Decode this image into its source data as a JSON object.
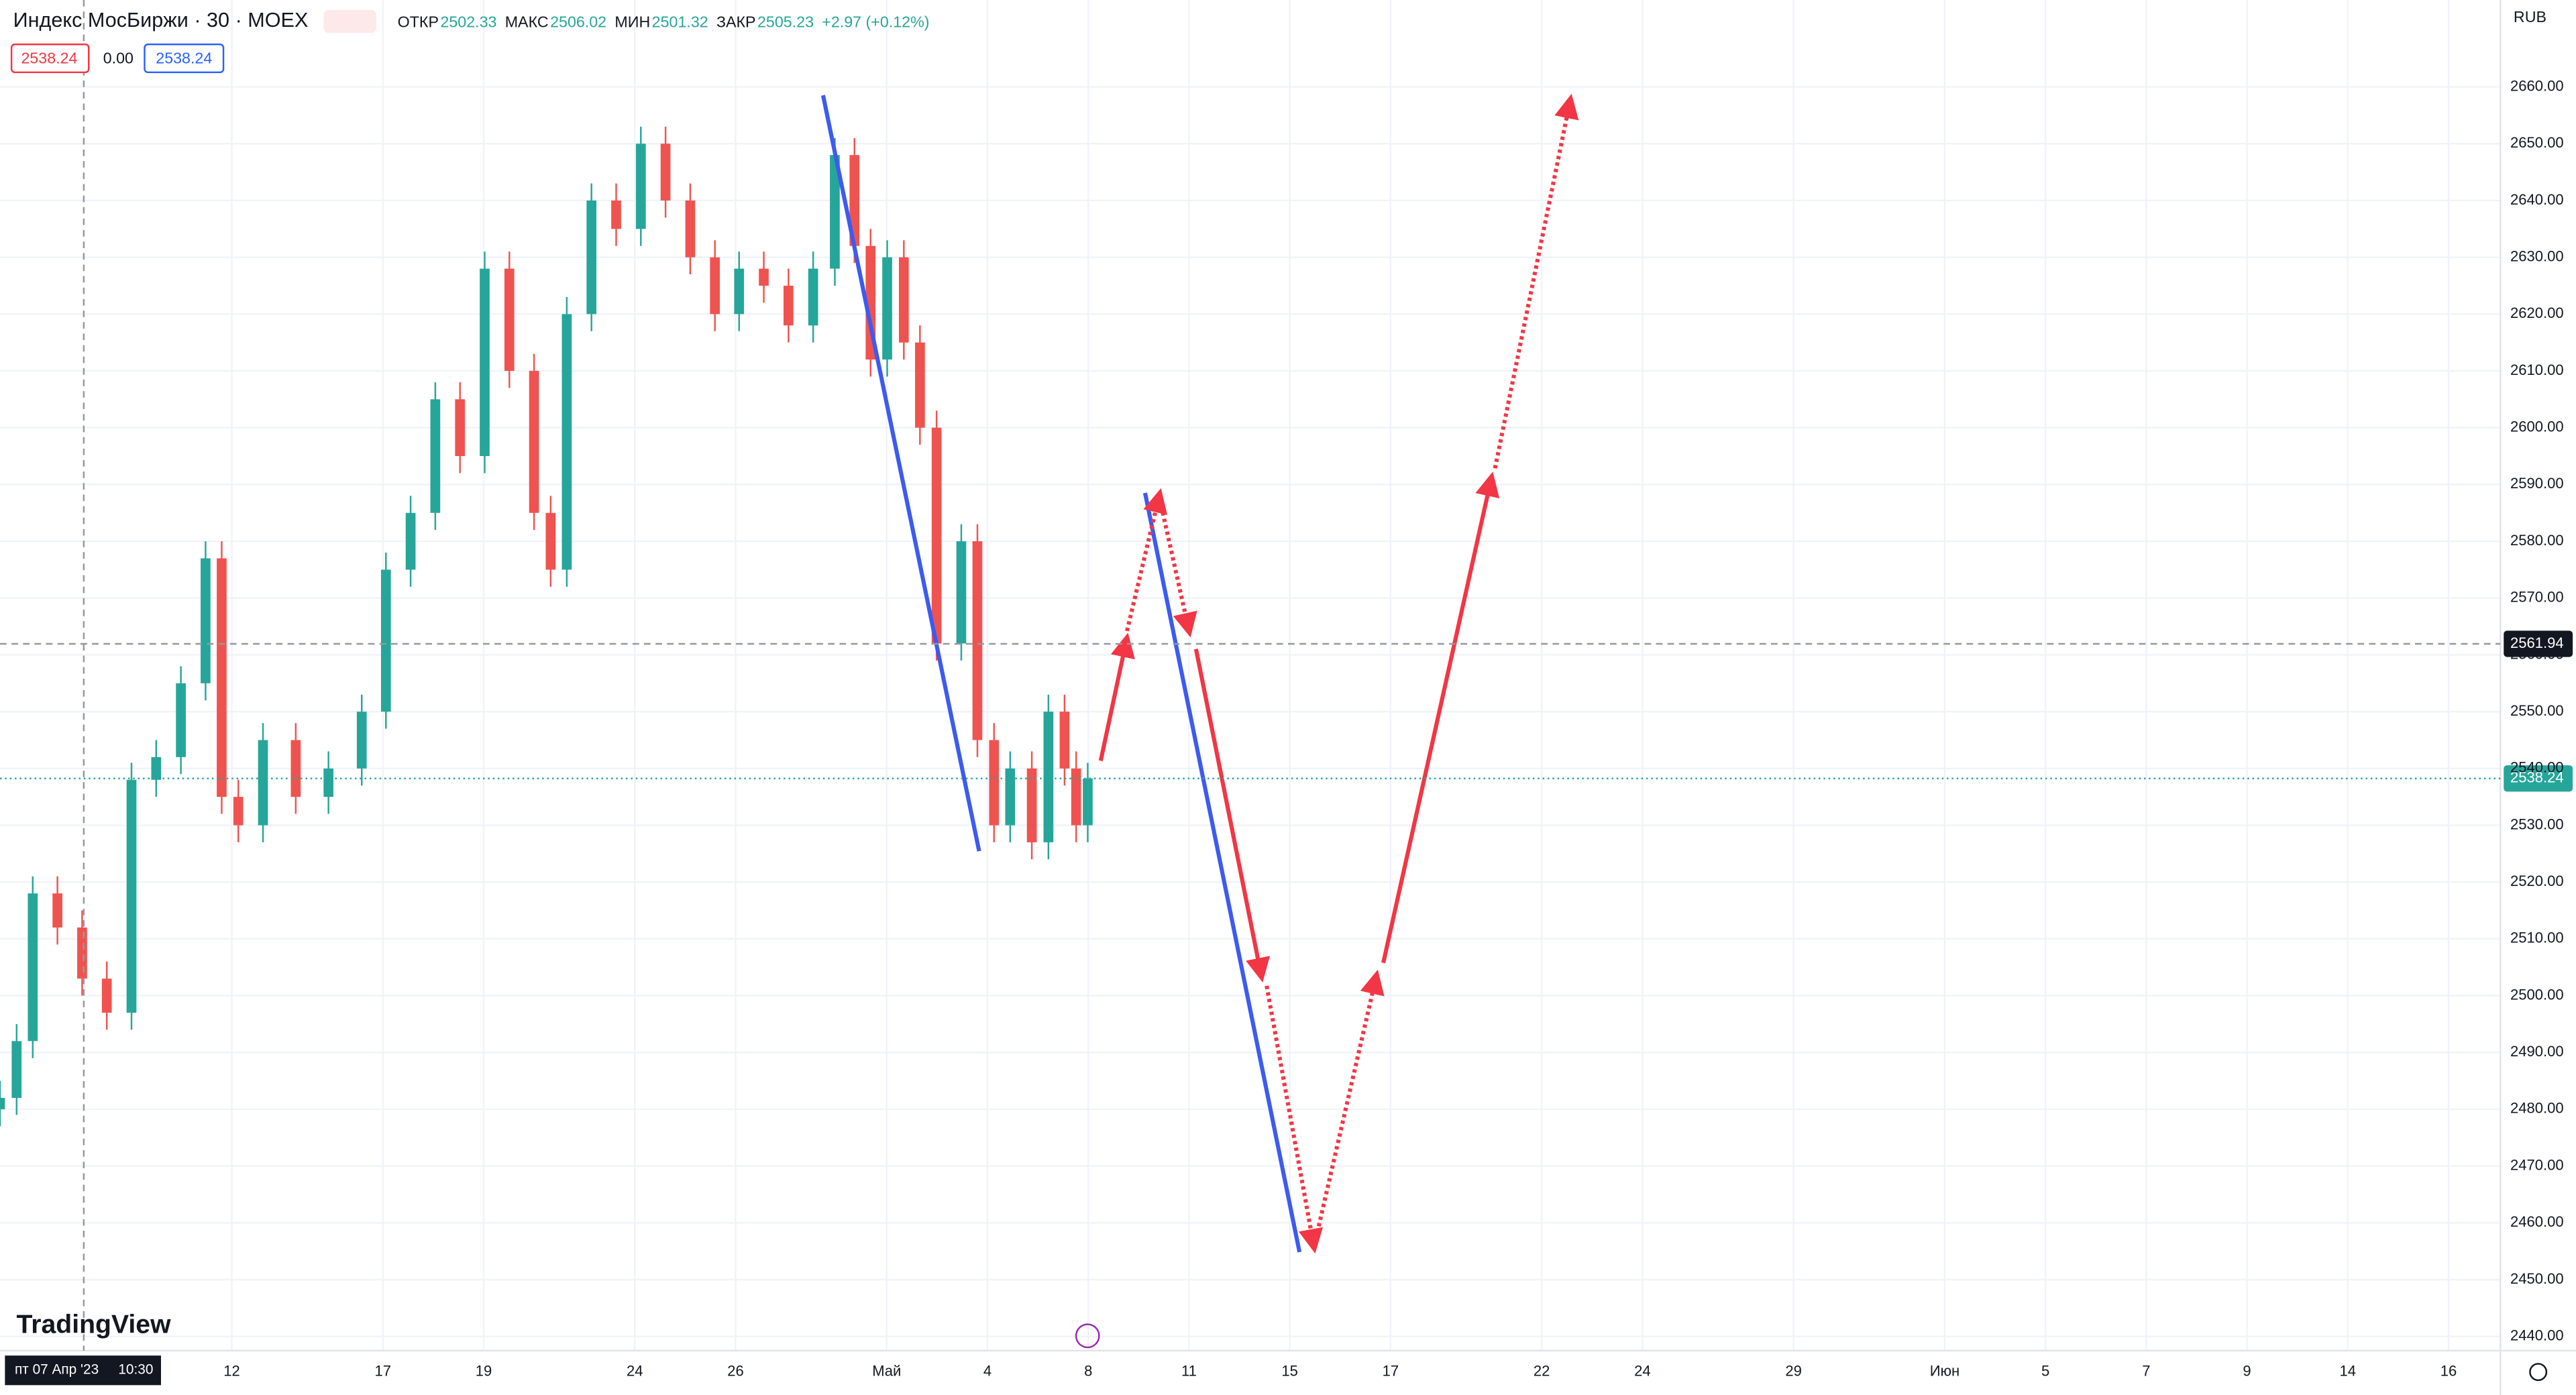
{
  "chart_data": {
    "type": "candlestick",
    "symbol": "Индекс МосБиржи · 30 · MOEX",
    "ohlc_legend": [
      {
        "label": "ОТКР",
        "value": "2502.33"
      },
      {
        "label": "МАКС",
        "value": "2506.02"
      },
      {
        "label": "МИН",
        "value": "2501.32"
      },
      {
        "label": "ЗАКР",
        "value": "2505.23"
      }
    ],
    "change": "+2.97 (+0.12%)",
    "badges": [
      "2538.24",
      "0.00",
      "2538.24"
    ],
    "currency": "RUB",
    "crosshair": {
      "price": "2561.94",
      "value": 2561.94,
      "date": "пт 07 Апр '23",
      "time": "10:30"
    },
    "last_price": {
      "label": "2538.24",
      "value": 2538.24
    },
    "brand": "TradingView",
    "up_color": "#26a69a",
    "down_color": "#ef5350",
    "x": [
      -4.6,
      -4.27,
      -3.95,
      -3.46,
      -2.97,
      -2.48,
      -1.99,
      -1.5,
      -1.01,
      -0.52,
      -0.2,
      0.13,
      0.62,
      1.27,
      1.92,
      2.58,
      3.06,
      3.55,
      4.04,
      4.53,
      5.02,
      5.51,
      6.0,
      6.33,
      6.65,
      7.14,
      7.63,
      8.12,
      8.61,
      9.1,
      9.59,
      10.07,
      10.56,
      11.05,
      11.54,
      11.97,
      12.36,
      12.68,
      13.01,
      13.34,
      13.66,
      13.99,
      14.48,
      14.8,
      15.13,
      15.45,
      15.88,
      16.21,
      16.53,
      16.76,
      16.99
    ],
    "open": [
      2480,
      2482,
      2492,
      2518,
      2512,
      2503,
      2497,
      2538,
      2542,
      2555,
      2577,
      2535,
      2530,
      2545,
      2535,
      2540,
      2550,
      2575,
      2585,
      2605,
      2595,
      2628,
      2610,
      2585,
      2575,
      2620,
      2640,
      2635,
      2650,
      2640,
      2630,
      2620,
      2628,
      2625,
      2618,
      2628,
      2648,
      2632,
      2612,
      2630,
      2615,
      2600,
      2562,
      2580,
      2545,
      2530,
      2540,
      2527,
      2550,
      2540,
      2530
    ],
    "high": [
      2485,
      2495,
      2521,
      2521,
      2515,
      2506,
      2541,
      2545,
      2558,
      2580,
      2580,
      2538,
      2548,
      2548,
      2543,
      2553,
      2578,
      2588,
      2608,
      2608,
      2631,
      2631,
      2613,
      2588,
      2623,
      2643,
      2643,
      2653,
      2653,
      2643,
      2633,
      2631,
      2631,
      2628,
      2631,
      2651,
      2651,
      2635,
      2633,
      2633,
      2618,
      2603,
      2583,
      2583,
      2548,
      2543,
      2543,
      2553,
      2553,
      2543,
      2541
    ],
    "low": [
      2477,
      2479,
      2489,
      2509,
      2500,
      2494,
      2494,
      2535,
      2539,
      2552,
      2532,
      2527,
      2527,
      2532,
      2532,
      2537,
      2547,
      2572,
      2582,
      2592,
      2592,
      2607,
      2582,
      2572,
      2572,
      2617,
      2632,
      2632,
      2637,
      2627,
      2617,
      2617,
      2622,
      2615,
      2615,
      2625,
      2629,
      2609,
      2609,
      2612,
      2597,
      2559,
      2559,
      2542,
      2527,
      2527,
      2524,
      2524,
      2537,
      2527,
      2527
    ],
    "close": [
      2482,
      2492,
      2518,
      2512,
      2503,
      2497,
      2538,
      2542,
      2555,
      2577,
      2535,
      2530,
      2545,
      2535,
      2540,
      2550,
      2575,
      2585,
      2605,
      2595,
      2628,
      2610,
      2585,
      2575,
      2620,
      2640,
      2635,
      2650,
      2640,
      2630,
      2620,
      2628,
      2625,
      2618,
      2628,
      2648,
      2632,
      2612,
      2630,
      2615,
      2600,
      2562,
      2580,
      2545,
      2530,
      2540,
      2527,
      2550,
      2540,
      2530,
      2538.24
    ],
    "xlim": [
      -4.6,
      45.03
    ],
    "xticks": [
      {
        "value": 0,
        "label": "12"
      },
      {
        "value": 3,
        "label": "17"
      },
      {
        "value": 5,
        "label": "19"
      },
      {
        "value": 8,
        "label": "24"
      },
      {
        "value": 10,
        "label": "26"
      },
      {
        "value": 13,
        "label": "Май"
      },
      {
        "value": 15,
        "label": "4"
      },
      {
        "value": 17,
        "label": "8"
      },
      {
        "value": 19,
        "label": "11"
      },
      {
        "value": 21,
        "label": "15"
      },
      {
        "value": 23,
        "label": "17"
      },
      {
        "value": 26,
        "label": "22"
      },
      {
        "value": 28,
        "label": "24"
      },
      {
        "value": 31,
        "label": "29"
      },
      {
        "value": 34,
        "label": "Июн"
      },
      {
        "value": 36,
        "label": "5"
      },
      {
        "value": 38,
        "label": "7"
      },
      {
        "value": 40,
        "label": "9"
      },
      {
        "value": 42,
        "label": "14"
      },
      {
        "value": 44,
        "label": "16"
      }
    ],
    "ylim": [
      2437.5,
      2675.3
    ],
    "yticks": [
      {
        "value": 2440,
        "label": "2440.00"
      },
      {
        "value": 2450,
        "label": "2450.00"
      },
      {
        "value": 2460,
        "label": "2460.00"
      },
      {
        "value": 2470,
        "label": "2470.00"
      },
      {
        "value": 2480,
        "label": "2480.00"
      },
      {
        "value": 2490,
        "label": "2490.00"
      },
      {
        "value": 2500,
        "label": "2500.00"
      },
      {
        "value": 2510,
        "label": "2510.00"
      },
      {
        "value": 2520,
        "label": "2520.00"
      },
      {
        "value": 2530,
        "label": "2530.00"
      },
      {
        "value": 2540,
        "label": "2540.00"
      },
      {
        "value": 2550,
        "label": "2550.00"
      },
      {
        "value": 2560,
        "label": "2560.00"
      },
      {
        "value": 2570,
        "label": "2570.00"
      },
      {
        "value": 2580,
        "label": "2580.00"
      },
      {
        "value": 2590,
        "label": "2590.00"
      },
      {
        "value": 2600,
        "label": "2600.00"
      },
      {
        "value": 2610,
        "label": "2610.00"
      },
      {
        "value": 2620,
        "label": "2620.00"
      },
      {
        "value": 2630,
        "label": "2630.00"
      },
      {
        "value": 2640,
        "label": "2640.00"
      },
      {
        "value": 2650,
        "label": "2650.00"
      },
      {
        "value": 2660,
        "label": "2660.00"
      }
    ],
    "grid": true
  }
}
